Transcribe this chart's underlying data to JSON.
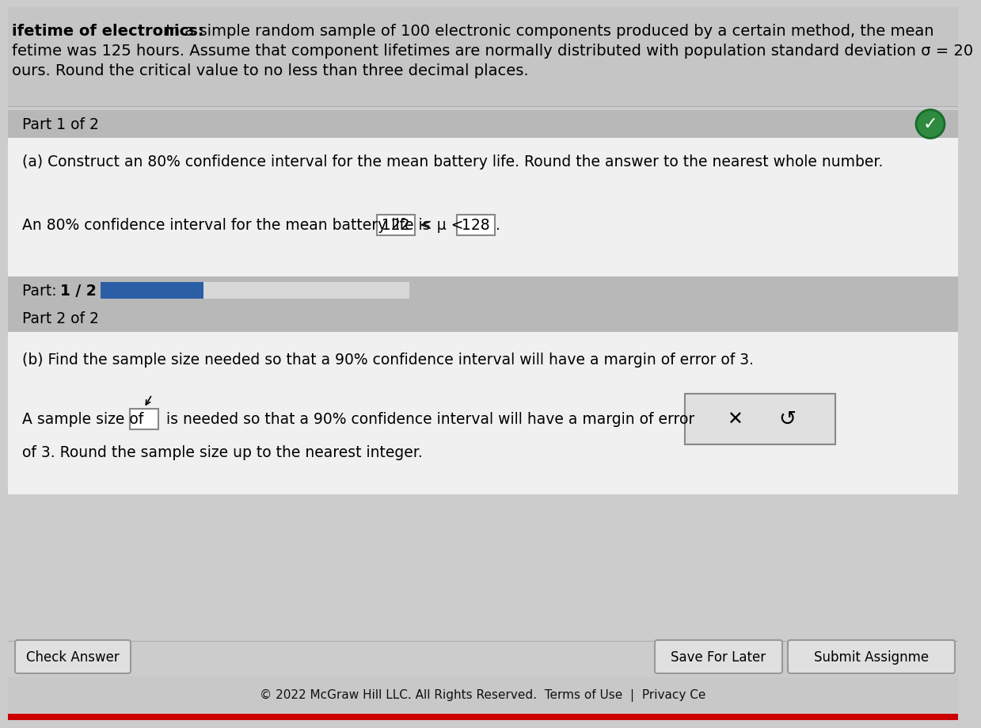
{
  "bg_color": "#cccccc",
  "header_bg": "#c5c5c5",
  "white_panel": "#f0f0f0",
  "gray_bar_color": "#b8b8b8",
  "blue_bar_color": "#2a5fa5",
  "input_box_bg": "#ffffff",
  "input_box_border": "#888888",
  "button_bg": "#e0e0e0",
  "button_border": "#999999",
  "red_bar_color": "#cc0000",
  "footer_bg": "#c8c8c8",
  "check_circle_color": "#2d8a3e",
  "check_circle_border": "#1a6b2a",
  "action_box_bg": "#e0e0e0",
  "action_box_border": "#888888",
  "title_bold": "ifetime of electronics:",
  "title_rest1": " In a simple random sample of 100 electronic components produced by a certain method, the mean",
  "title_line2": "fetime was 125 hours. Assume that component lifetimes are normally distributed with population standard deviation σ = 20",
  "title_line3": "ours. Round the critical value to no less than three decimal places.",
  "part1_label": "Part 1 of 2",
  "part1_q": "(a) Construct an 80% confidence interval for the mean battery life. Round the answer to the nearest whole number.",
  "part1_ans_pre": "An 80% confidence interval for the mean battery life is ",
  "part1_val1": "122",
  "part1_mu": " < μ < ",
  "part1_val2": "128",
  "part1_dot": ".",
  "progress_text1": "Part: ",
  "progress_text2": "1 / 2",
  "part2_label": "Part 2 of 2",
  "part2_q": "(b) Find the sample size needed so that a 90% confidence interval will have a margin of error of 3.",
  "part2_pre": "A sample size of ",
  "part2_mid": " is needed so that a 90% confidence interval will have a margin of error",
  "part2_suf": "of 3. Round the sample size up to the nearest integer.",
  "save_btn": "Save For Later",
  "submit_btn": "Submit Assignme",
  "check_btn": "Check Answer",
  "footer_copy": "© 2022 McGraw Hill LLC. All Rights Reserved.",
  "footer_terms": "Terms of Use",
  "footer_pipe": "  |  ",
  "footer_privacy": "Privacy Ce"
}
